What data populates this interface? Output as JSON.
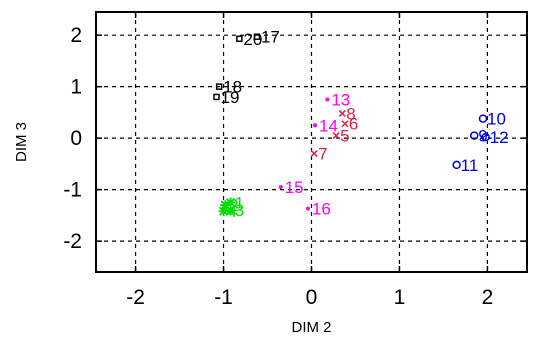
{
  "chart_data": {
    "type": "scatter",
    "title": "",
    "xlabel": "DIM 2",
    "ylabel": "DIM 3",
    "xlim": [
      -2.45,
      2.45
    ],
    "ylim": [
      -2.6,
      2.45
    ],
    "xticks": [
      "-2",
      "-1",
      "0",
      "1",
      "2"
    ],
    "yticks": [
      "2",
      "1",
      "0",
      "-1",
      "-2"
    ],
    "grid": true,
    "series": [
      {
        "color": "#000000",
        "marker": "square",
        "points": [
          {
            "label": "17",
            "x": -0.62,
            "y": 1.97
          },
          {
            "label": "20",
            "x": -0.82,
            "y": 1.93
          },
          {
            "label": "18",
            "x": -1.05,
            "y": 1.0
          },
          {
            "label": "19",
            "x": -1.08,
            "y": 0.8
          }
        ]
      },
      {
        "color": "#e0204a",
        "marker": "x",
        "points": [
          {
            "label": "8",
            "x": 0.35,
            "y": 0.48
          },
          {
            "label": "6",
            "x": 0.38,
            "y": 0.28
          },
          {
            "label": "5",
            "x": 0.28,
            "y": 0.05
          },
          {
            "label": "7",
            "x": 0.03,
            "y": -0.3
          }
        ]
      },
      {
        "color": "#ff00ff",
        "marker": "dot",
        "points": [
          {
            "label": "13",
            "x": 0.18,
            "y": 0.75
          },
          {
            "label": "14",
            "x": 0.04,
            "y": 0.25
          },
          {
            "label": "15",
            "x": -0.35,
            "y": -0.95
          },
          {
            "label": "16",
            "x": -0.04,
            "y": -1.37
          }
        ]
      },
      {
        "color": "#00dd00",
        "marker": "star",
        "points": [
          {
            "label": "1",
            "x": -0.92,
            "y": -1.25
          },
          {
            "label": "2",
            "x": -0.98,
            "y": -1.3
          },
          {
            "label": "3",
            "x": -0.92,
            "y": -1.4
          },
          {
            "label": "4",
            "x": -1.0,
            "y": -1.42
          }
        ]
      },
      {
        "color": "#0000ee",
        "marker": "circle",
        "points": [
          {
            "label": "10",
            "x": 1.95,
            "y": 0.38
          },
          {
            "label": "9",
            "x": 1.85,
            "y": 0.05
          },
          {
            "label": "12",
            "x": 1.98,
            "y": 0.02
          },
          {
            "label": "11",
            "x": 1.65,
            "y": -0.52
          }
        ]
      }
    ]
  }
}
